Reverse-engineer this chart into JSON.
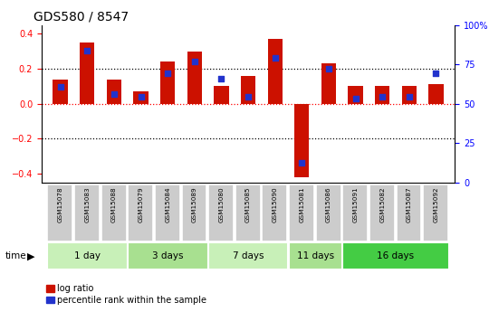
{
  "title": "GDS580 / 8547",
  "samples": [
    "GSM15078",
    "GSM15083",
    "GSM15088",
    "GSM15079",
    "GSM15084",
    "GSM15089",
    "GSM15080",
    "GSM15085",
    "GSM15090",
    "GSM15081",
    "GSM15086",
    "GSM15091",
    "GSM15082",
    "GSM15087",
    "GSM15092"
  ],
  "log_ratio": [
    0.14,
    0.35,
    0.14,
    0.07,
    0.24,
    0.3,
    0.1,
    0.16,
    0.37,
    -0.42,
    0.23,
    0.1,
    0.1,
    0.1,
    0.11
  ],
  "percentile": [
    62,
    88,
    57,
    55,
    72,
    80,
    68,
    55,
    83,
    8,
    75,
    54,
    55,
    55,
    72
  ],
  "groups": [
    {
      "label": "1 day",
      "start": 0,
      "end": 3,
      "color": "#c8f0b8"
    },
    {
      "label": "3 days",
      "start": 3,
      "end": 6,
      "color": "#a8e090"
    },
    {
      "label": "7 days",
      "start": 6,
      "end": 9,
      "color": "#c8f0b8"
    },
    {
      "label": "11 days",
      "start": 9,
      "end": 11,
      "color": "#a8e090"
    },
    {
      "label": "16 days",
      "start": 11,
      "end": 15,
      "color": "#44cc44"
    }
  ],
  "bar_color": "#cc1100",
  "dot_color": "#2233cc",
  "ylim_left": [
    -0.45,
    0.45
  ],
  "yticks_left": [
    -0.4,
    -0.2,
    0.0,
    0.2,
    0.4
  ],
  "yticks_right": [
    0,
    25,
    50,
    75,
    100
  ],
  "hlines_black": [
    -0.2,
    0.2
  ],
  "hline_red": 0.0,
  "legend_labels": [
    "log ratio",
    "percentile rank within the sample"
  ],
  "bar_width": 0.55,
  "sample_box_color": "#cccccc",
  "n_samples": 15
}
